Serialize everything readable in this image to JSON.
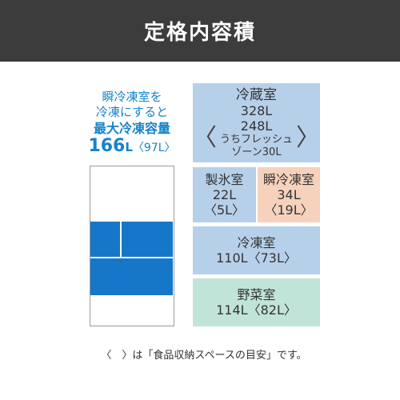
{
  "header": {
    "title": "定格内容積"
  },
  "left_caption": {
    "line1": "瞬冷凍室を",
    "line2": "冷凍にすると",
    "line3": "最大冷凍容量",
    "value": "166",
    "unit": "L",
    "sub": "〈97L〉"
  },
  "compartments": {
    "fridge": {
      "name": "冷蔵室",
      "total": "328L",
      "fresh_value": "248L",
      "fresh_label": "うちフレッシュゾーン30L",
      "bracket_open": "〈",
      "bracket_close": "〉"
    },
    "ice": {
      "name": "製氷室",
      "value": "22L",
      "sub": "〈5L〉"
    },
    "quick_freeze": {
      "name": "瞬冷凍室",
      "value": "34L",
      "sub": "〈19L〉"
    },
    "freezer": {
      "name": "冷凍室",
      "value": "110L〈73L〉"
    },
    "vegetable": {
      "name": "野菜室",
      "value": "114L〈82L〉"
    }
  },
  "footnote": "〈　〉は「食品収納スペースの目安」です。",
  "colors": {
    "header_bg": "#3c3c3c",
    "accent_blue": "#1677c8",
    "fridge_bg": "#b7d0ea",
    "quick_freeze_bg": "#f6d2bd",
    "vegetable_bg": "#c1e4d8"
  }
}
